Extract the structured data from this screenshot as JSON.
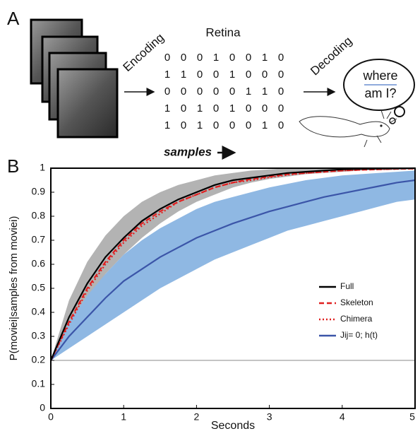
{
  "panel_a": {
    "label": "A",
    "encoding": "Encoding",
    "retina": "Retina",
    "matrix": [
      [
        0,
        0,
        0,
        1,
        0,
        0,
        1,
        0
      ],
      [
        1,
        1,
        0,
        0,
        1,
        0,
        0,
        0
      ],
      [
        0,
        0,
        0,
        0,
        0,
        1,
        1,
        0
      ],
      [
        1,
        0,
        1,
        0,
        1,
        0,
        0,
        0
      ],
      [
        1,
        0,
        1,
        0,
        0,
        0,
        1,
        0
      ]
    ],
    "samples": "samples",
    "decoding": "Decoding",
    "thought_line1": "where",
    "thought_line2": "am I?"
  },
  "chart_data": {
    "type": "line",
    "panel_label": "B",
    "xlabel": "Seconds",
    "ylabel": "P(moviei|samples from moviei)",
    "x": [
      0,
      0.25,
      0.5,
      0.75,
      1,
      1.25,
      1.5,
      1.75,
      2,
      2.25,
      2.5,
      2.75,
      3,
      3.25,
      3.5,
      3.75,
      4,
      4.25,
      4.5,
      4.75,
      5
    ],
    "xlim": [
      0,
      5
    ],
    "xticks": [
      0,
      1,
      2,
      3,
      4,
      5
    ],
    "ylim": [
      0,
      1
    ],
    "yticks": [
      0,
      0.1,
      0.2,
      0.3,
      0.4,
      0.5,
      0.6,
      0.7,
      0.8,
      0.9,
      1
    ],
    "hline": 0.2,
    "hline_color": "#888888",
    "legend": "lower right",
    "series": [
      {
        "name": "Full",
        "color": "#000000",
        "dash": "solid",
        "band_color": "#b3b3b3",
        "values": [
          0.2,
          0.38,
          0.52,
          0.63,
          0.71,
          0.78,
          0.83,
          0.87,
          0.9,
          0.93,
          0.95,
          0.96,
          0.97,
          0.98,
          0.985,
          0.99,
          0.995,
          0.997,
          0.998,
          0.999,
          1
        ],
        "band_lower": [
          0.2,
          0.33,
          0.45,
          0.56,
          0.64,
          0.71,
          0.77,
          0.82,
          0.86,
          0.89,
          0.92,
          0.94,
          0.955,
          0.965,
          0.975,
          0.98,
          0.985,
          0.99,
          0.993,
          0.995,
          0.997
        ],
        "band_upper": [
          0.2,
          0.45,
          0.61,
          0.72,
          0.8,
          0.86,
          0.9,
          0.93,
          0.95,
          0.97,
          0.98,
          0.99,
          0.995,
          1,
          1,
          1,
          1,
          1,
          1,
          1,
          1
        ]
      },
      {
        "name": "Skeleton",
        "color": "#e02020",
        "dash": "dashed",
        "values": [
          0.2,
          0.36,
          0.5,
          0.61,
          0.7,
          0.77,
          0.82,
          0.86,
          0.89,
          0.92,
          0.94,
          0.955,
          0.965,
          0.975,
          0.98,
          0.985,
          0.99,
          0.993,
          0.995,
          0.997,
          0.998
        ]
      },
      {
        "name": "Chimera",
        "color": "#e02020",
        "dash": "dotted",
        "values": [
          0.2,
          0.35,
          0.49,
          0.6,
          0.69,
          0.76,
          0.81,
          0.86,
          0.89,
          0.92,
          0.94,
          0.95,
          0.962,
          0.972,
          0.98,
          0.985,
          0.99,
          0.993,
          0.995,
          0.997,
          0.998
        ]
      },
      {
        "name": "Jij= 0; h(t)",
        "color": "#3b55a8",
        "dash": "solid",
        "band_color": "#8fb8e3",
        "values": [
          0.2,
          0.3,
          0.38,
          0.46,
          0.53,
          0.58,
          0.63,
          0.67,
          0.71,
          0.74,
          0.77,
          0.795,
          0.82,
          0.84,
          0.86,
          0.88,
          0.895,
          0.91,
          0.925,
          0.94,
          0.95
        ],
        "band_lower": [
          0.2,
          0.25,
          0.3,
          0.35,
          0.4,
          0.45,
          0.5,
          0.54,
          0.58,
          0.62,
          0.65,
          0.68,
          0.71,
          0.74,
          0.76,
          0.78,
          0.8,
          0.82,
          0.84,
          0.86,
          0.87
        ],
        "band_upper": [
          0.2,
          0.36,
          0.47,
          0.56,
          0.64,
          0.7,
          0.75,
          0.79,
          0.83,
          0.86,
          0.88,
          0.9,
          0.92,
          0.935,
          0.95,
          0.96,
          0.97,
          0.975,
          0.98,
          0.985,
          0.99
        ]
      }
    ]
  }
}
